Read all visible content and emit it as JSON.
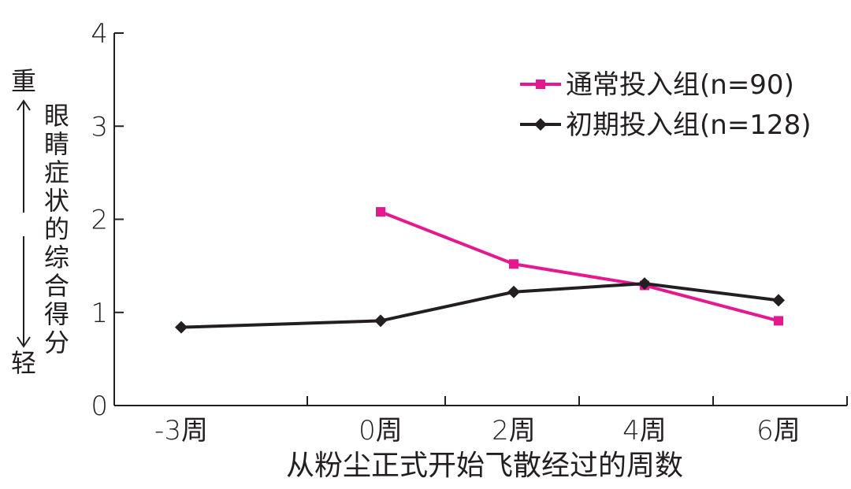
{
  "chart_data": {
    "type": "line",
    "categories": [
      "-3周",
      "0周",
      "2周",
      "4周",
      "6周"
    ],
    "series": [
      {
        "name": "通常投入组(n=90)",
        "color": "#e6178f",
        "marker": "square",
        "values": [
          null,
          2.08,
          1.52,
          1.29,
          0.91
        ]
      },
      {
        "name": "初期投入组(n=128)",
        "color": "#231f20",
        "marker": "diamond",
        "values": [
          0.84,
          0.91,
          1.22,
          1.31,
          1.13
        ]
      }
    ],
    "xlabel": "从粉尘正式开始飞散经过的周数",
    "ylabel": "眼睛症状的综合得分",
    "ylabel_top": "重",
    "ylabel_bottom": "轻",
    "ylim": [
      0,
      4
    ],
    "yticks": [
      "0",
      "1",
      "2",
      "3",
      "4"
    ],
    "grid": false,
    "legend_position": "top-right"
  }
}
